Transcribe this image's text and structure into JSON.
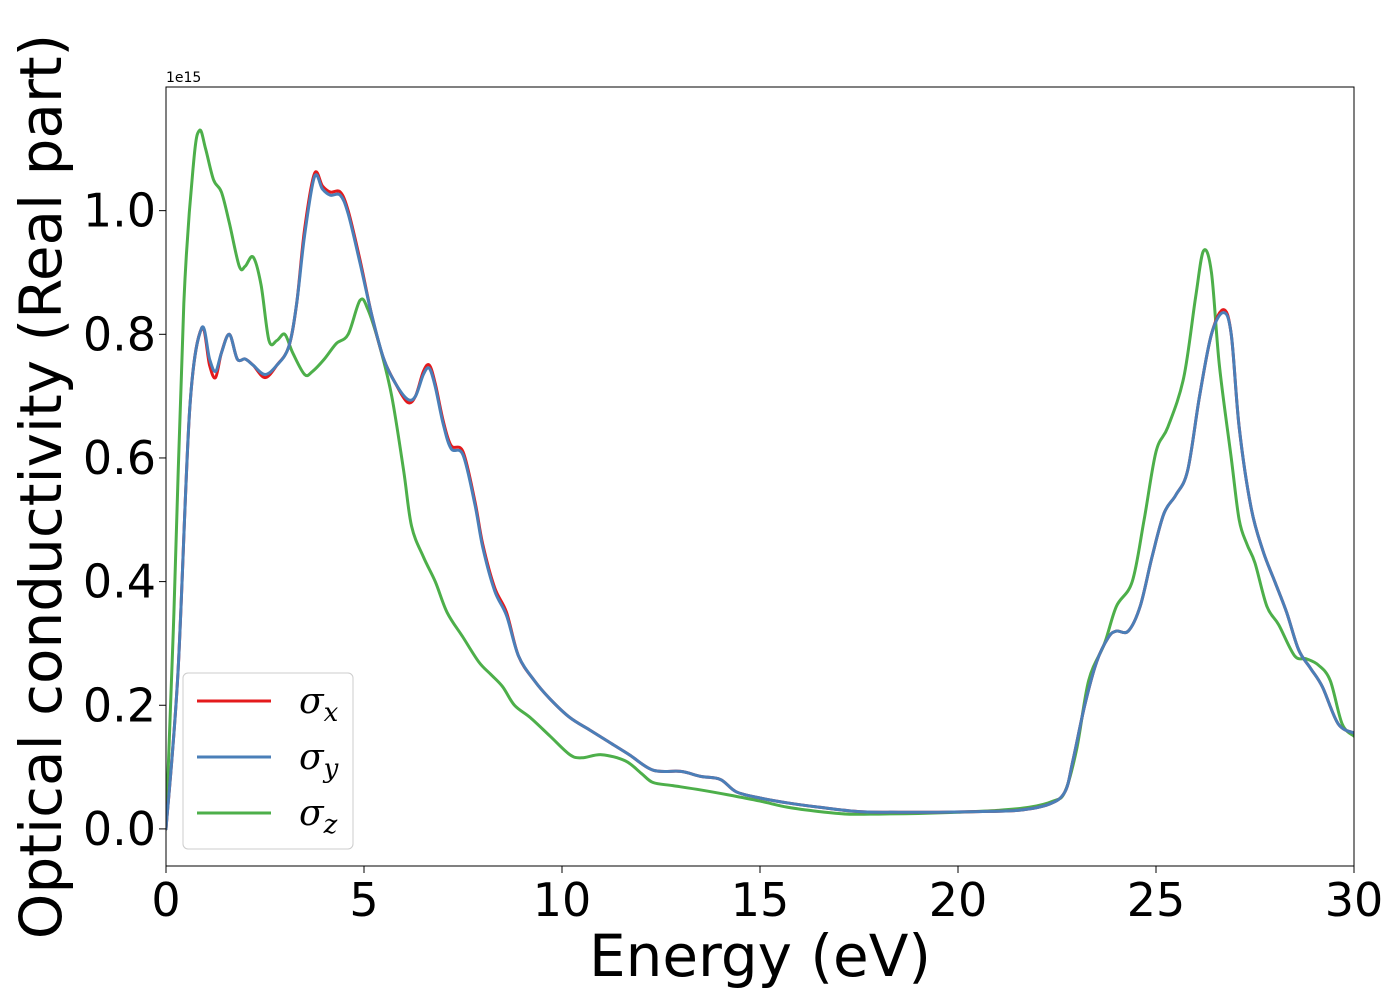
{
  "chart_data": {
    "type": "line",
    "title": "",
    "xlabel": "Energy (eV)",
    "ylabel": "Optical conductivity (Real part)",
    "y_offset_text": "1e15",
    "xlim": [
      0,
      30
    ],
    "ylim": [
      -0.06,
      1.2
    ],
    "xticks": [
      0,
      5,
      10,
      15,
      20,
      25,
      30
    ],
    "xtick_labels": [
      "0",
      "5",
      "10",
      "15",
      "20",
      "25",
      "30"
    ],
    "yticks": [
      0.0,
      0.2,
      0.4,
      0.6,
      0.8,
      1.0
    ],
    "ytick_labels": [
      "0.0",
      "0.2",
      "0.4",
      "0.6",
      "0.8",
      "1.0"
    ],
    "grid": false,
    "legend_position": "lower-left",
    "series": [
      {
        "name": "σx",
        "label_base": "σ",
        "label_sub": "x",
        "color": "#e41a1c",
        "points": [
          [
            0,
            0.0
          ],
          [
            0.3,
            0.25
          ],
          [
            0.6,
            0.68
          ],
          [
            0.9,
            0.81
          ],
          [
            1.1,
            0.75
          ],
          [
            1.25,
            0.73
          ],
          [
            1.4,
            0.77
          ],
          [
            1.6,
            0.8
          ],
          [
            1.8,
            0.76
          ],
          [
            2.0,
            0.76
          ],
          [
            2.2,
            0.75
          ],
          [
            2.5,
            0.73
          ],
          [
            2.8,
            0.75
          ],
          [
            3.1,
            0.78
          ],
          [
            3.3,
            0.85
          ],
          [
            3.5,
            0.97
          ],
          [
            3.75,
            1.06
          ],
          [
            3.95,
            1.04
          ],
          [
            4.15,
            1.03
          ],
          [
            4.4,
            1.03
          ],
          [
            4.6,
            1.0
          ],
          [
            4.9,
            0.92
          ],
          [
            5.2,
            0.83
          ],
          [
            5.5,
            0.76
          ],
          [
            5.8,
            0.72
          ],
          [
            6.1,
            0.69
          ],
          [
            6.3,
            0.7
          ],
          [
            6.5,
            0.74
          ],
          [
            6.65,
            0.75
          ],
          [
            6.8,
            0.72
          ],
          [
            7.0,
            0.66
          ],
          [
            7.2,
            0.62
          ],
          [
            7.5,
            0.61
          ],
          [
            7.8,
            0.53
          ],
          [
            8.0,
            0.46
          ],
          [
            8.3,
            0.39
          ],
          [
            8.6,
            0.35
          ],
          [
            8.9,
            0.28
          ],
          [
            9.3,
            0.24
          ],
          [
            9.7,
            0.21
          ],
          [
            10.2,
            0.18
          ],
          [
            10.7,
            0.16
          ],
          [
            11.2,
            0.14
          ],
          [
            11.7,
            0.12
          ],
          [
            12.3,
            0.095
          ],
          [
            13.0,
            0.093
          ],
          [
            13.5,
            0.085
          ],
          [
            14.0,
            0.08
          ],
          [
            14.4,
            0.06
          ],
          [
            15.0,
            0.05
          ],
          [
            15.7,
            0.042
          ],
          [
            16.5,
            0.035
          ],
          [
            17.5,
            0.028
          ],
          [
            18.5,
            0.027
          ],
          [
            19.5,
            0.027
          ],
          [
            20.5,
            0.028
          ],
          [
            21.5,
            0.03
          ],
          [
            22.3,
            0.04
          ],
          [
            22.7,
            0.06
          ],
          [
            22.9,
            0.11
          ],
          [
            23.2,
            0.2
          ],
          [
            23.5,
            0.27
          ],
          [
            23.8,
            0.31
          ],
          [
            24.0,
            0.32
          ],
          [
            24.3,
            0.32
          ],
          [
            24.6,
            0.36
          ],
          [
            24.9,
            0.44
          ],
          [
            25.2,
            0.51
          ],
          [
            25.5,
            0.54
          ],
          [
            25.8,
            0.58
          ],
          [
            26.1,
            0.7
          ],
          [
            26.4,
            0.8
          ],
          [
            26.7,
            0.84
          ],
          [
            26.9,
            0.8
          ],
          [
            27.1,
            0.65
          ],
          [
            27.4,
            0.52
          ],
          [
            27.7,
            0.45
          ],
          [
            28.0,
            0.4
          ],
          [
            28.3,
            0.35
          ],
          [
            28.6,
            0.29
          ],
          [
            28.9,
            0.26
          ],
          [
            29.2,
            0.23
          ],
          [
            29.6,
            0.17
          ],
          [
            30.0,
            0.155
          ]
        ]
      },
      {
        "name": "σy",
        "label_base": "σ",
        "label_sub": "y",
        "color": "#4a7fb8",
        "points": [
          [
            0,
            0.0
          ],
          [
            0.3,
            0.25
          ],
          [
            0.6,
            0.68
          ],
          [
            0.9,
            0.81
          ],
          [
            1.1,
            0.76
          ],
          [
            1.25,
            0.74
          ],
          [
            1.4,
            0.77
          ],
          [
            1.6,
            0.8
          ],
          [
            1.8,
            0.76
          ],
          [
            2.0,
            0.76
          ],
          [
            2.2,
            0.75
          ],
          [
            2.5,
            0.735
          ],
          [
            2.8,
            0.75
          ],
          [
            3.1,
            0.78
          ],
          [
            3.3,
            0.85
          ],
          [
            3.5,
            0.96
          ],
          [
            3.75,
            1.055
          ],
          [
            3.95,
            1.035
          ],
          [
            4.15,
            1.025
          ],
          [
            4.4,
            1.025
          ],
          [
            4.6,
            0.995
          ],
          [
            4.9,
            0.915
          ],
          [
            5.2,
            0.83
          ],
          [
            5.5,
            0.76
          ],
          [
            5.8,
            0.72
          ],
          [
            6.1,
            0.695
          ],
          [
            6.3,
            0.7
          ],
          [
            6.5,
            0.735
          ],
          [
            6.65,
            0.745
          ],
          [
            6.8,
            0.715
          ],
          [
            7.0,
            0.655
          ],
          [
            7.2,
            0.615
          ],
          [
            7.5,
            0.605
          ],
          [
            7.8,
            0.525
          ],
          [
            8.0,
            0.455
          ],
          [
            8.3,
            0.385
          ],
          [
            8.6,
            0.345
          ],
          [
            8.9,
            0.28
          ],
          [
            9.3,
            0.24
          ],
          [
            9.7,
            0.21
          ],
          [
            10.2,
            0.18
          ],
          [
            10.7,
            0.16
          ],
          [
            11.2,
            0.14
          ],
          [
            11.7,
            0.12
          ],
          [
            12.3,
            0.095
          ],
          [
            13.0,
            0.093
          ],
          [
            13.5,
            0.085
          ],
          [
            14.0,
            0.08
          ],
          [
            14.4,
            0.06
          ],
          [
            15.0,
            0.05
          ],
          [
            15.7,
            0.042
          ],
          [
            16.5,
            0.035
          ],
          [
            17.5,
            0.028
          ],
          [
            18.5,
            0.027
          ],
          [
            19.5,
            0.027
          ],
          [
            20.5,
            0.028
          ],
          [
            21.5,
            0.03
          ],
          [
            22.3,
            0.04
          ],
          [
            22.7,
            0.06
          ],
          [
            22.9,
            0.11
          ],
          [
            23.2,
            0.2
          ],
          [
            23.5,
            0.27
          ],
          [
            23.8,
            0.31
          ],
          [
            24.0,
            0.32
          ],
          [
            24.3,
            0.32
          ],
          [
            24.6,
            0.36
          ],
          [
            24.9,
            0.44
          ],
          [
            25.2,
            0.51
          ],
          [
            25.5,
            0.54
          ],
          [
            25.8,
            0.58
          ],
          [
            26.1,
            0.7
          ],
          [
            26.4,
            0.8
          ],
          [
            26.7,
            0.835
          ],
          [
            26.9,
            0.8
          ],
          [
            27.1,
            0.65
          ],
          [
            27.4,
            0.52
          ],
          [
            27.7,
            0.45
          ],
          [
            28.0,
            0.4
          ],
          [
            28.3,
            0.35
          ],
          [
            28.6,
            0.29
          ],
          [
            28.9,
            0.26
          ],
          [
            29.2,
            0.23
          ],
          [
            29.6,
            0.17
          ],
          [
            30.0,
            0.155
          ]
        ]
      },
      {
        "name": "σz",
        "label_base": "σ",
        "label_sub": "z",
        "color": "#4daf4a",
        "points": [
          [
            0,
            0.0
          ],
          [
            0.2,
            0.35
          ],
          [
            0.45,
            0.85
          ],
          [
            0.7,
            1.08
          ],
          [
            0.85,
            1.13
          ],
          [
            1.0,
            1.1
          ],
          [
            1.2,
            1.05
          ],
          [
            1.4,
            1.03
          ],
          [
            1.6,
            0.98
          ],
          [
            1.85,
            0.91
          ],
          [
            2.0,
            0.91
          ],
          [
            2.2,
            0.925
          ],
          [
            2.4,
            0.88
          ],
          [
            2.6,
            0.79
          ],
          [
            2.8,
            0.79
          ],
          [
            3.0,
            0.8
          ],
          [
            3.2,
            0.77
          ],
          [
            3.5,
            0.735
          ],
          [
            3.7,
            0.74
          ],
          [
            4.0,
            0.76
          ],
          [
            4.3,
            0.785
          ],
          [
            4.6,
            0.8
          ],
          [
            4.9,
            0.855
          ],
          [
            5.1,
            0.84
          ],
          [
            5.4,
            0.78
          ],
          [
            5.7,
            0.7
          ],
          [
            6.0,
            0.58
          ],
          [
            6.2,
            0.49
          ],
          [
            6.5,
            0.44
          ],
          [
            6.8,
            0.4
          ],
          [
            7.1,
            0.35
          ],
          [
            7.5,
            0.31
          ],
          [
            7.9,
            0.27
          ],
          [
            8.2,
            0.25
          ],
          [
            8.5,
            0.23
          ],
          [
            8.8,
            0.2
          ],
          [
            9.2,
            0.18
          ],
          [
            9.7,
            0.15
          ],
          [
            10.2,
            0.12
          ],
          [
            10.5,
            0.115
          ],
          [
            11.0,
            0.12
          ],
          [
            11.6,
            0.11
          ],
          [
            12.0,
            0.09
          ],
          [
            12.3,
            0.075
          ],
          [
            12.8,
            0.07
          ],
          [
            13.5,
            0.063
          ],
          [
            14.2,
            0.055
          ],
          [
            15.0,
            0.045
          ],
          [
            15.7,
            0.035
          ],
          [
            16.5,
            0.028
          ],
          [
            17.2,
            0.024
          ],
          [
            18.0,
            0.024
          ],
          [
            19.0,
            0.025
          ],
          [
            20.0,
            0.027
          ],
          [
            21.0,
            0.03
          ],
          [
            21.8,
            0.035
          ],
          [
            22.4,
            0.045
          ],
          [
            22.7,
            0.06
          ],
          [
            23.0,
            0.13
          ],
          [
            23.3,
            0.24
          ],
          [
            23.7,
            0.3
          ],
          [
            24.0,
            0.36
          ],
          [
            24.4,
            0.4
          ],
          [
            24.7,
            0.5
          ],
          [
            25.0,
            0.61
          ],
          [
            25.3,
            0.65
          ],
          [
            25.7,
            0.73
          ],
          [
            26.0,
            0.86
          ],
          [
            26.2,
            0.935
          ],
          [
            26.4,
            0.9
          ],
          [
            26.6,
            0.75
          ],
          [
            26.9,
            0.6
          ],
          [
            27.1,
            0.5
          ],
          [
            27.3,
            0.46
          ],
          [
            27.5,
            0.43
          ],
          [
            27.8,
            0.36
          ],
          [
            28.1,
            0.33
          ],
          [
            28.5,
            0.28
          ],
          [
            28.8,
            0.275
          ],
          [
            29.1,
            0.265
          ],
          [
            29.4,
            0.24
          ],
          [
            29.7,
            0.17
          ],
          [
            30.0,
            0.15
          ]
        ]
      }
    ]
  }
}
